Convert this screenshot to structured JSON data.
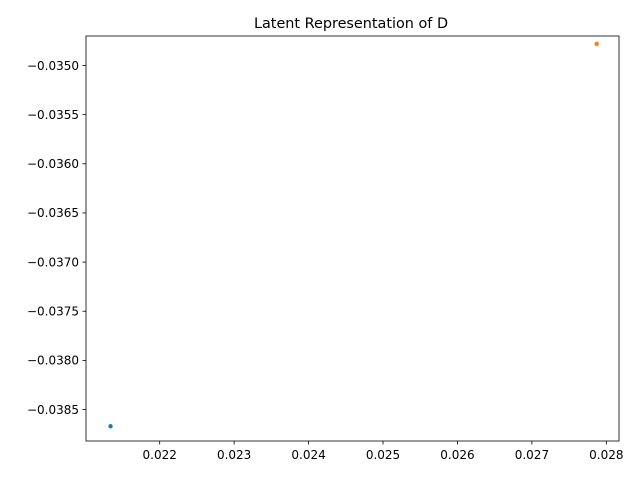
{
  "chart_data": {
    "type": "scatter",
    "title": "Latent Representation of D",
    "xlabel": "",
    "ylabel": "",
    "xlim": [
      0.02101,
      0.02817
    ],
    "ylim": [
      -0.03882,
      -0.0347
    ],
    "grid": false,
    "legend": "none",
    "x_ticks": [
      {
        "value": 0.022,
        "label": "0.022"
      },
      {
        "value": 0.023,
        "label": "0.023"
      },
      {
        "value": 0.024,
        "label": "0.024"
      },
      {
        "value": 0.025,
        "label": "0.025"
      },
      {
        "value": 0.026,
        "label": "0.026"
      },
      {
        "value": 0.027,
        "label": "0.027"
      },
      {
        "value": 0.028,
        "label": "0.028"
      }
    ],
    "y_ticks": [
      {
        "value": -0.035,
        "label": "−0.0350"
      },
      {
        "value": -0.0355,
        "label": "−0.0355"
      },
      {
        "value": -0.036,
        "label": "−0.0360"
      },
      {
        "value": -0.0365,
        "label": "−0.0365"
      },
      {
        "value": -0.037,
        "label": "−0.0370"
      },
      {
        "value": -0.0375,
        "label": "−0.0375"
      },
      {
        "value": -0.038,
        "label": "−0.0380"
      },
      {
        "value": -0.0385,
        "label": "−0.0385"
      }
    ],
    "series": [
      {
        "color": "#1f77b4",
        "points": [
          {
            "x": 0.02134,
            "y": -0.03867
          }
        ]
      },
      {
        "color": "#ff7f0e",
        "points": [
          {
            "x": 0.02787,
            "y": -0.03478
          }
        ]
      }
    ]
  }
}
